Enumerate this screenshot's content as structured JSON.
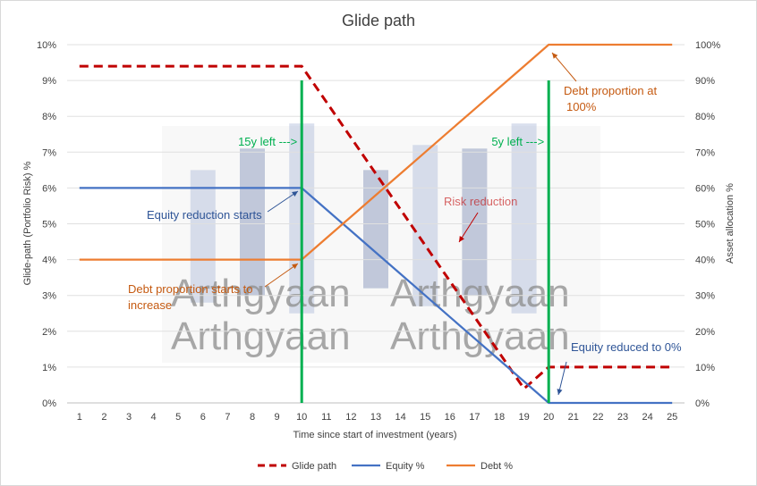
{
  "chart_data": {
    "type": "line",
    "title": "Glide path",
    "xlabel": "Time since start of investment (years)",
    "ylabel_left": "Glide-path (Portfolio Risk) %",
    "ylabel_right": "Asset allocation %",
    "x": [
      1,
      2,
      3,
      4,
      5,
      6,
      7,
      8,
      9,
      10,
      11,
      12,
      13,
      14,
      15,
      16,
      17,
      18,
      19,
      20,
      21,
      22,
      23,
      24,
      25
    ],
    "ylim_left": [
      0,
      10
    ],
    "ylim_right": [
      0,
      100
    ],
    "left_ticks": [
      "0%",
      "1%",
      "2%",
      "3%",
      "4%",
      "5%",
      "6%",
      "7%",
      "8%",
      "9%",
      "10%"
    ],
    "right_ticks": [
      "0%",
      "10%",
      "20%",
      "30%",
      "40%",
      "50%",
      "60%",
      "70%",
      "80%",
      "90%",
      "100%"
    ],
    "grid": true,
    "legend_position": "bottom",
    "series": [
      {
        "name": "Glide path",
        "axis": "left",
        "color": "#c00000",
        "dash": true,
        "values": [
          9.4,
          9.4,
          9.4,
          9.4,
          9.4,
          9.4,
          9.4,
          9.4,
          9.4,
          9.4,
          8.4,
          7.4,
          6.4,
          5.4,
          4.4,
          3.4,
          2.4,
          1.4,
          0.4,
          1.0,
          1.0,
          1.0,
          1.0,
          1.0,
          1.0
        ]
      },
      {
        "name": "Equity %",
        "axis": "right",
        "color": "#4472c4",
        "values": [
          60,
          60,
          60,
          60,
          60,
          60,
          60,
          60,
          60,
          60,
          54,
          48,
          42,
          36,
          30,
          24,
          18,
          12,
          6,
          0,
          0,
          0,
          0,
          0,
          0
        ]
      },
      {
        "name": "Debt %",
        "axis": "right",
        "color": "#ed7d31",
        "values": [
          40,
          40,
          40,
          40,
          40,
          40,
          40,
          40,
          40,
          40,
          46,
          52,
          58,
          64,
          70,
          76,
          82,
          88,
          94,
          100,
          100,
          100,
          100,
          100,
          100
        ]
      }
    ],
    "vertical_markers": [
      {
        "x": 10,
        "color": "#00b050",
        "label": "15y left --->"
      },
      {
        "x": 20,
        "color": "#00b050",
        "label": "5y left --->"
      }
    ],
    "annotations": [
      {
        "text": "Equity reduction starts",
        "color": "#2f5597"
      },
      {
        "text": "Debt proportion starts to",
        "text2": "increase",
        "color": "#c55a11"
      },
      {
        "text": "Risk reduction",
        "color": "#c00000"
      },
      {
        "text": "Debt proportion at",
        "text2": "100%",
        "color": "#c55a11"
      },
      {
        "text": "Equity reduced to 0%",
        "color": "#2f5597"
      }
    ],
    "watermark": "Arthgyaan"
  }
}
